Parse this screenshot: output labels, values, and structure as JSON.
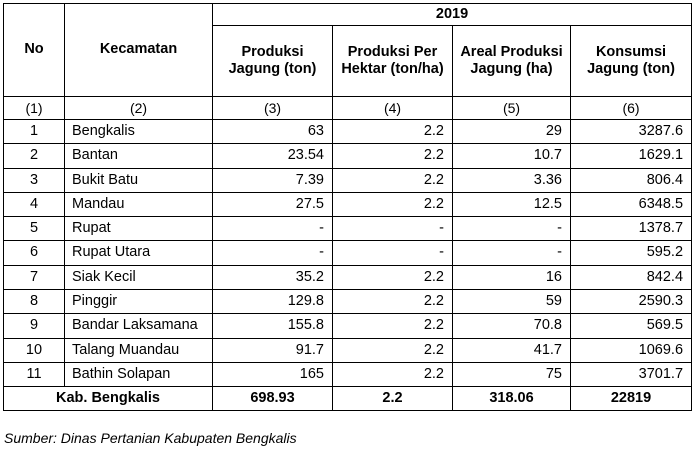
{
  "table": {
    "year": "2019",
    "headers": {
      "no": "No",
      "kecamatan": "Kecamatan",
      "produksi": "Produksi Jagung (ton)",
      "produksi_per_hektar": "Produksi Per Hektar (ton/ha)",
      "areal": "Areal Produksi Jagung (ha)",
      "konsumsi": "Konsumsi Jagung (ton)"
    },
    "column_numbers": [
      "(1)",
      "(2)",
      "(3)",
      "(4)",
      "(5)",
      "(6)"
    ],
    "rows": [
      {
        "no": "1",
        "kecamatan": "Bengkalis",
        "produksi": "63",
        "per_hektar": "2.2",
        "areal": "29",
        "konsumsi": "3287.6"
      },
      {
        "no": "2",
        "kecamatan": "Bantan",
        "produksi": "23.54",
        "per_hektar": "2.2",
        "areal": "10.7",
        "konsumsi": "1629.1"
      },
      {
        "no": "3",
        "kecamatan": "Bukit Batu",
        "produksi": "7.39",
        "per_hektar": "2.2",
        "areal": "3.36",
        "konsumsi": "806.4"
      },
      {
        "no": "4",
        "kecamatan": "Mandau",
        "produksi": "27.5",
        "per_hektar": "2.2",
        "areal": "12.5",
        "konsumsi": "6348.5"
      },
      {
        "no": "5",
        "kecamatan": "Rupat",
        "produksi": "-",
        "per_hektar": "-",
        "areal": "-",
        "konsumsi": "1378.7"
      },
      {
        "no": "6",
        "kecamatan": "Rupat Utara",
        "produksi": "-",
        "per_hektar": "-",
        "areal": "-",
        "konsumsi": "595.2"
      },
      {
        "no": "7",
        "kecamatan": "Siak Kecil",
        "produksi": "35.2",
        "per_hektar": "2.2",
        "areal": "16",
        "konsumsi": "842.4"
      },
      {
        "no": "8",
        "kecamatan": "Pinggir",
        "produksi": "129.8",
        "per_hektar": "2.2",
        "areal": "59",
        "konsumsi": "2590.3"
      },
      {
        "no": "9",
        "kecamatan": "Bandar Laksamana",
        "produksi": "155.8",
        "per_hektar": "2.2",
        "areal": "70.8",
        "konsumsi": "569.5"
      },
      {
        "no": "10",
        "kecamatan": "Talang Muandau",
        "produksi": "91.7",
        "per_hektar": "2.2",
        "areal": "41.7",
        "konsumsi": "1069.6"
      },
      {
        "no": "11",
        "kecamatan": "Bathin Solapan",
        "produksi": "165",
        "per_hektar": "2.2",
        "areal": "75",
        "konsumsi": "3701.7"
      }
    ],
    "total": {
      "label": "Kab. Bengkalis",
      "produksi": "698.93",
      "per_hektar": "2.2",
      "areal": "318.06",
      "konsumsi": "22819"
    }
  },
  "source": "Sumber:  Dinas Pertanian Kabupaten Bengkalis"
}
